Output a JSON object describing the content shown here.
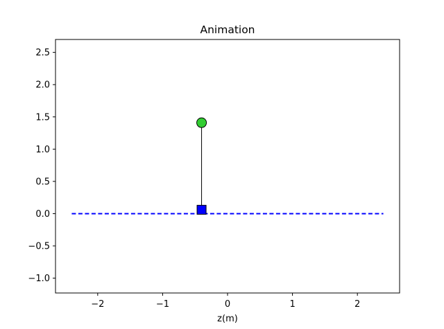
{
  "chart_data": {
    "type": "line",
    "title": "Animation",
    "xlabel": "z(m)",
    "ylabel": "",
    "xlim": [
      -2.65,
      2.65
    ],
    "ylim": [
      -1.23,
      2.7
    ],
    "grid": false,
    "x_ticks": [
      -2,
      -1,
      0,
      1,
      2
    ],
    "x_tick_labels": [
      "−2",
      "−1",
      "0",
      "1",
      "2"
    ],
    "y_ticks": [
      -1.0,
      -0.5,
      0.0,
      0.5,
      1.0,
      1.5,
      2.0,
      2.5
    ],
    "y_tick_labels": [
      "−1.0",
      "−0.5",
      "0.0",
      "0.5",
      "1.0",
      "1.5",
      "2.0",
      "2.5"
    ],
    "track": {
      "x": [
        -2.4,
        2.4
      ],
      "y": [
        0,
        0
      ],
      "color": "#0000ff",
      "style": "dashed"
    },
    "rod": {
      "x": [
        -0.4,
        -0.4
      ],
      "y": [
        0.06,
        1.41
      ],
      "color": "#000000"
    },
    "cart": {
      "x": -0.4,
      "y": 0.06,
      "marker": "square",
      "color": "#0000ff"
    },
    "bob": {
      "x": -0.4,
      "y": 1.41,
      "marker": "circle",
      "color": "#32cd32"
    }
  }
}
